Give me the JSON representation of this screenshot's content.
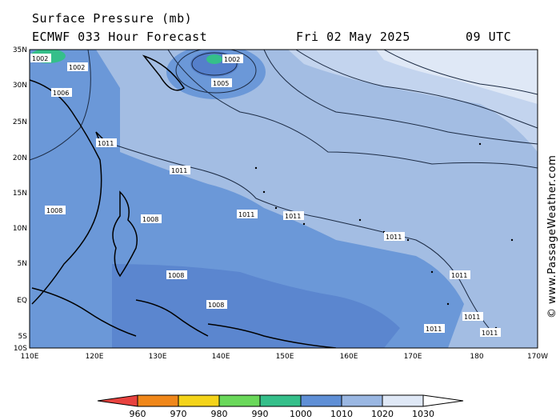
{
  "header": {
    "title": "Surface Pressure (mb)",
    "model": "ECMWF 033 Hour Forecast",
    "date": "Fri 02 May 2025",
    "time": "09 UTC"
  },
  "credit": "www.PassageWeather.com",
  "copyright_symbol": "©",
  "axes": {
    "lat_labels": [
      "35N",
      "30N",
      "25N",
      "20N",
      "15N",
      "10N",
      "5N",
      "EQ",
      "5S",
      "10S"
    ],
    "lon_labels": [
      "110E",
      "120E",
      "130E",
      "140E",
      "150E",
      "160E",
      "170E",
      "180",
      "170W"
    ]
  },
  "isobar_labels": [
    "1011",
    "1011",
    "1011",
    "1011",
    "1011",
    "1008",
    "1008",
    "1008",
    "1008",
    "1005",
    "1002",
    "1002",
    "1002",
    "1006",
    "1011",
    "1011",
    "1011",
    "1011"
  ],
  "colorbar": {
    "ticks": [
      "960",
      "970",
      "980",
      "990",
      "1000",
      "1010",
      "1020",
      "1030"
    ],
    "colors": [
      "#e8423f",
      "#f0871a",
      "#f4d41a",
      "#6ad85a",
      "#35bf8a",
      "#5f8fd6",
      "#9ab7e2",
      "#dfe8f6",
      "#ffffff"
    ]
  },
  "colors": {
    "ocean_high": "#a3bde3",
    "ocean_mid": "#6b98d8",
    "ocean_low": "#557fcb",
    "ocean_pale": "#d4e0f3"
  }
}
